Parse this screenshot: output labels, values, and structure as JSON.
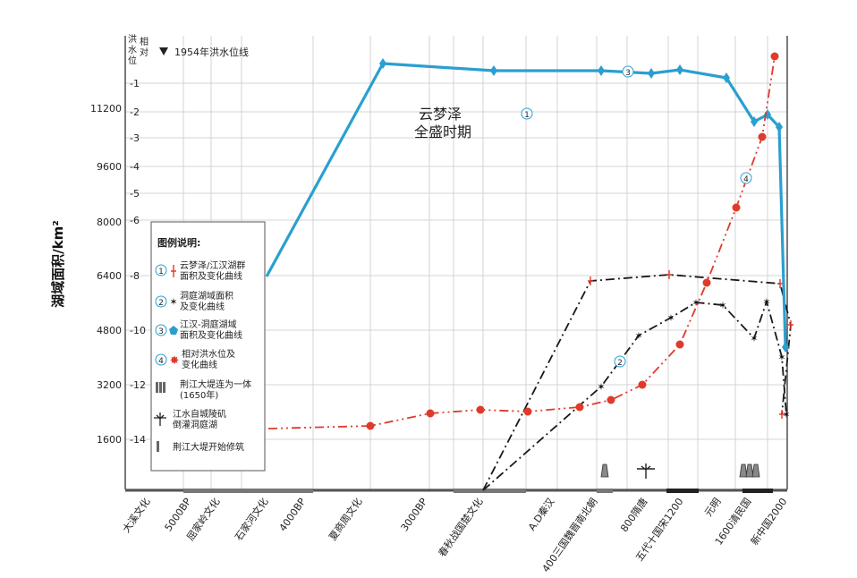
{
  "chart_data": {
    "type": "line",
    "ylabel": "湖域面积/km²",
    "y_left": {
      "ticks": [
        1600,
        3200,
        4800,
        6400,
        8000,
        9600,
        11200
      ],
      "range": [
        0,
        13000
      ]
    },
    "y_right": {
      "label": "洪水相对位",
      "ticks": [
        -1,
        -2,
        -3,
        -4,
        -5,
        -6,
        -8,
        -10,
        -12,
        -14
      ]
    },
    "x_categories": [
      "大溪文化",
      "5000BP",
      "屈家岭文化",
      "石家河文化",
      "4000BP",
      "夏商周文化",
      "3000BP",
      "春秋战国楚文化",
      "A.D秦汉",
      "400三国魏晋南北朝",
      "800隋唐",
      "五代十国宋1200",
      "元明",
      "1600清民国",
      "新中国2000"
    ],
    "grid": true,
    "legend_title": "图例说明:",
    "legend": [
      {
        "num": "1",
        "line1": "云梦泽/江汉湖群",
        "line2": "面积及变化曲线"
      },
      {
        "num": "2",
        "line1": "洞庭湖域面积",
        "line2": "及变化曲线"
      },
      {
        "num": "3",
        "line1": "江汉-洞庭湖域",
        "line2": "面积及变化曲线"
      },
      {
        "num": "4",
        "line1": "相对洪水位及",
        "line2": "变化曲线"
      },
      {
        "num": "",
        "line1": "荆江大堤连为一体",
        "line2": "(1650年)"
      },
      {
        "num": "",
        "line1": "江水自城陵矶",
        "line2": "倒灌洞庭湖"
      },
      {
        "num": "",
        "line1": "荆江大堤开始修筑",
        "line2": ""
      }
    ],
    "flood_1954": "1954年洪水位线",
    "annotation": {
      "line1": "云梦泽",
      "line2": "全盛时期"
    },
    "series": [
      {
        "id": "1",
        "color": "#1a1a1a",
        "points": [
          [
            540,
            548
          ],
          [
            660,
            314
          ],
          [
            748,
            307
          ],
          [
            872,
            317
          ],
          [
            884,
            363
          ],
          [
            874,
            463
          ]
        ]
      },
      {
        "id": "2",
        "color": "#1a1a1a",
        "points": [
          [
            540,
            548
          ],
          [
            672,
            432
          ],
          [
            714,
            375
          ],
          [
            750,
            355
          ],
          [
            778,
            338
          ],
          [
            808,
            341
          ],
          [
            843,
            378
          ],
          [
            857,
            337
          ],
          [
            874,
            399
          ],
          [
            879,
            463
          ]
        ]
      },
      {
        "id": "3",
        "color": "#2a9fd0",
        "points": [
          [
            298,
            309
          ],
          [
            428,
            71
          ],
          [
            552,
            79
          ],
          [
            672,
            79
          ],
          [
            728,
            82
          ],
          [
            760,
            78
          ],
          [
            812,
            87
          ],
          [
            843,
            136
          ],
          [
            858,
            128
          ],
          [
            871,
            142
          ],
          [
            878,
            388
          ]
        ]
      },
      {
        "id": "4",
        "color": "#e03a2a",
        "points": [
          [
            300,
            479
          ],
          [
            414,
            476
          ],
          [
            481,
            462
          ],
          [
            537,
            458
          ],
          [
            590,
            460
          ],
          [
            648,
            455
          ],
          [
            683,
            447
          ],
          [
            718,
            430
          ],
          [
            760,
            385
          ],
          [
            790,
            316
          ],
          [
            823,
            232
          ],
          [
            852,
            153
          ],
          [
            866,
            63
          ]
        ]
      }
    ]
  }
}
